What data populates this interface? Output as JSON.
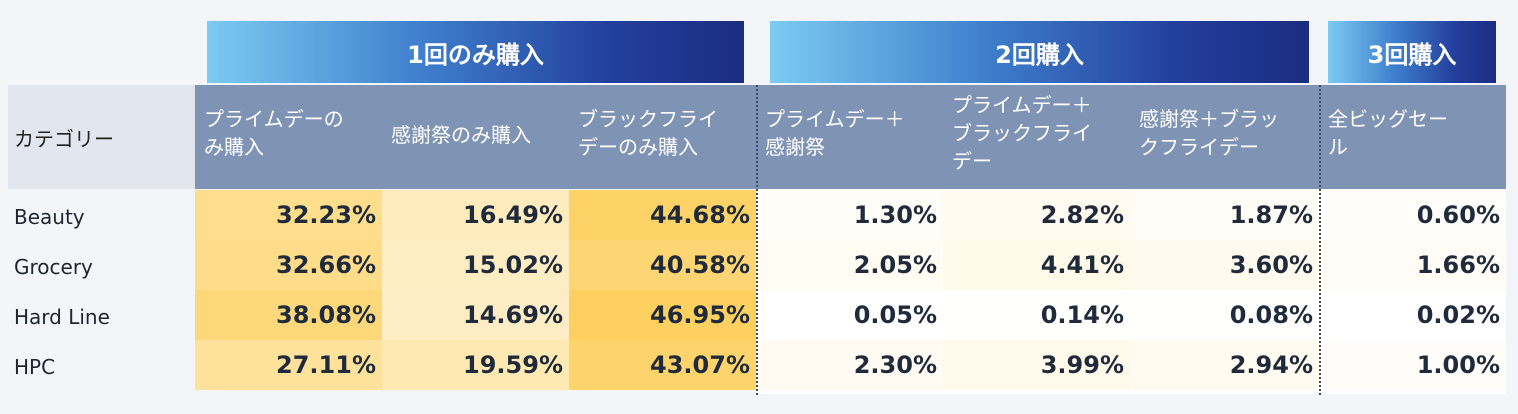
{
  "groups": {
    "once": "1回のみ購入",
    "twice": "2回購入",
    "thrice": "3回購入"
  },
  "category_header": "カテゴリー",
  "columns": [
    "プライムデーのみ購入",
    "感謝祭のみ購入",
    "ブラックフライデーのみ購入",
    "プライムデー＋感謝祭",
    "プライムデー＋ブラックフライデー",
    "感謝祭＋ブラックフライデー",
    "全ビッグセール"
  ],
  "column_lines": [
    [
      "プライムデーの",
      "み購入"
    ],
    [
      "感謝祭のみ購入"
    ],
    [
      "ブラックフライ",
      "デーのみ購入"
    ],
    [
      "プライムデー＋",
      "感謝祭"
    ],
    [
      "プライムデー＋",
      "ブラックフライ",
      "デー"
    ],
    [
      "感謝祭＋ブラッ",
      "クフライデー"
    ],
    [
      "全ビッグセー",
      "ル"
    ]
  ],
  "rows": [
    {
      "label": "Beauty",
      "values": [
        "32.23%",
        "16.49%",
        "44.68%",
        "1.30%",
        "2.82%",
        "1.87%",
        "0.60%"
      ]
    },
    {
      "label": "Grocery",
      "values": [
        "32.66%",
        "15.02%",
        "40.58%",
        "2.05%",
        "4.41%",
        "3.60%",
        "1.66%"
      ]
    },
    {
      "label": "Hard Line",
      "values": [
        "38.08%",
        "14.69%",
        "46.95%",
        "0.05%",
        "0.14%",
        "0.08%",
        "0.02%"
      ]
    },
    {
      "label": "HPC",
      "values": [
        "27.11%",
        "19.59%",
        "43.07%",
        "2.30%",
        "3.99%",
        "2.94%",
        "1.00%"
      ]
    }
  ],
  "chart_data": {
    "type": "table",
    "groups": [
      {
        "name": "1回のみ購入",
        "columns": [
          "プライムデーのみ購入",
          "感謝祭のみ購入",
          "ブラックフライデーのみ購入"
        ]
      },
      {
        "name": "2回購入",
        "columns": [
          "プライムデー＋感謝祭",
          "プライムデー＋ブラックフライデー",
          "感謝祭＋ブラックフライデー"
        ]
      },
      {
        "name": "3回購入",
        "columns": [
          "全ビッグセール"
        ]
      }
    ],
    "row_header": "カテゴリー",
    "categories": [
      "Beauty",
      "Grocery",
      "Hard Line",
      "HPC"
    ],
    "series": [
      {
        "name": "プライムデーのみ購入",
        "values": [
          32.23,
          32.66,
          38.08,
          27.11
        ]
      },
      {
        "name": "感謝祭のみ購入",
        "values": [
          16.49,
          15.02,
          14.69,
          19.59
        ]
      },
      {
        "name": "ブラックフライデーのみ購入",
        "values": [
          44.68,
          40.58,
          46.95,
          43.07
        ]
      },
      {
        "name": "プライムデー＋感謝祭",
        "values": [
          1.3,
          2.05,
          0.05,
          2.3
        ]
      },
      {
        "name": "プライムデー＋ブラックフライデー",
        "values": [
          2.82,
          4.41,
          0.14,
          3.99
        ]
      },
      {
        "name": "感謝祭＋ブラックフライデー",
        "values": [
          1.87,
          3.6,
          0.08,
          2.94
        ]
      },
      {
        "name": "全ビッグセール",
        "values": [
          0.6,
          1.66,
          0.02,
          1.0
        ]
      }
    ],
    "unit": "%",
    "heatmap_colors": {
      "low": "#ffffff",
      "high": "#fdd060"
    }
  }
}
